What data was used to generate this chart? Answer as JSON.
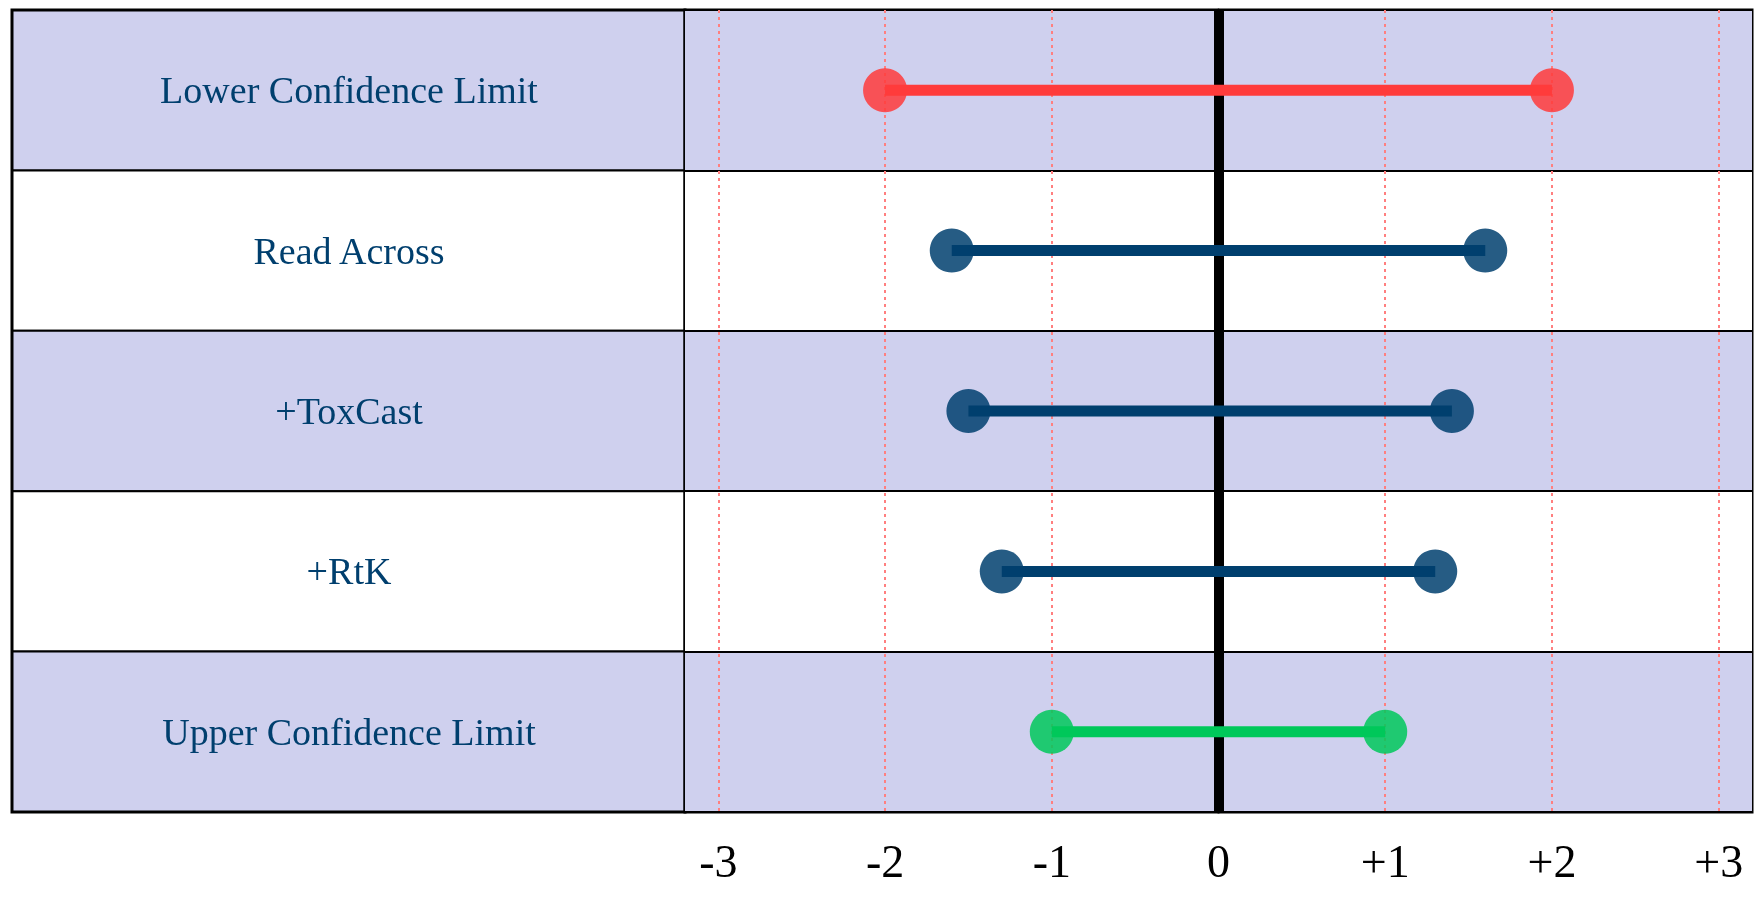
{
  "chart_data": {
    "type": "bar",
    "orientation": "horizontal",
    "categories": [
      "Lower Confidence Limit",
      "Read Across",
      "+ToxCast",
      "+RtK",
      "Upper Confidence Limit"
    ],
    "series": [
      {
        "base": [
          -2.0,
          -1.6,
          -1.5,
          -1.3,
          -1.0
        ],
        "values": [
          4.0,
          3.2,
          2.9,
          2.6,
          2.0
        ],
        "colors": [
          "#ff3b3b",
          "#003f6e",
          "#003f6e",
          "#003f6e",
          "#00c85a"
        ]
      },
      {
        "type": "scatter",
        "values": [
          -2.0,
          -1.6,
          -1.5,
          -1.3,
          -1.0
        ],
        "colors": [
          "#ff3b3b",
          "#003f6e",
          "#003f6e",
          "#003f6e",
          "#00c85a"
        ]
      },
      {
        "type": "scatter",
        "values": [
          2.0,
          1.6,
          1.4,
          1.3,
          1.0
        ],
        "colors": [
          "#ff3b3b",
          "#003f6e",
          "#003f6e",
          "#003f6e",
          "#00c85a"
        ]
      }
    ],
    "marker": "circle",
    "xlim": [
      -3.2,
      3.2
    ],
    "xticks": [
      -3,
      -2,
      -1,
      0,
      {
        "value": 1,
        "label": "+1"
      },
      {
        "value": 2,
        "label": "+2"
      },
      {
        "value": 3,
        "label": "+3"
      }
    ],
    "grid": "x",
    "ref_lines": [
      {
        "axis": "x",
        "value": 0,
        "color": "#000000"
      }
    ]
  }
}
